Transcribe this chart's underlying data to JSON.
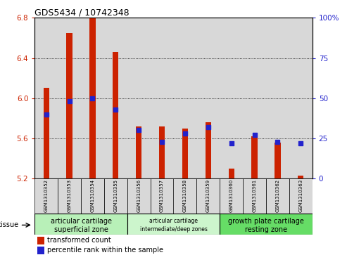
{
  "title": "GDS5434 / 10742348",
  "samples": [
    "GSM1310352",
    "GSM1310353",
    "GSM1310354",
    "GSM1310355",
    "GSM1310356",
    "GSM1310357",
    "GSM1310358",
    "GSM1310359",
    "GSM1310360",
    "GSM1310361",
    "GSM1310362",
    "GSM1310363"
  ],
  "transformed_count": [
    6.1,
    6.65,
    6.8,
    6.46,
    5.72,
    5.72,
    5.7,
    5.76,
    5.3,
    5.62,
    5.56,
    5.23
  ],
  "percentile_rank": [
    40,
    48,
    50,
    43,
    30,
    23,
    28,
    32,
    22,
    27,
    23,
    22
  ],
  "ylim_left": [
    5.2,
    6.8
  ],
  "ylim_right": [
    0,
    100
  ],
  "yticks_left": [
    5.2,
    5.6,
    6.0,
    6.4,
    6.8
  ],
  "yticks_right": [
    0,
    25,
    50,
    75,
    100
  ],
  "bar_color": "#cc2200",
  "dot_color": "#2222cc",
  "column_bg": "#d8d8d8",
  "tissue_groups": [
    {
      "label1": "articular cartilage",
      "label2": "superficial zone",
      "indices": [
        0,
        1,
        2,
        3
      ],
      "color": "#b8f0b8"
    },
    {
      "label1": "articular cartilage",
      "label2": "intermediate/deep zones",
      "indices": [
        4,
        5,
        6,
        7
      ],
      "color": "#ccf5cc",
      "small": true
    },
    {
      "label1": "growth plate cartilage",
      "label2": "resting zone",
      "indices": [
        8,
        9,
        10,
        11
      ],
      "color": "#66dd66"
    }
  ],
  "tissue_label": "tissue",
  "legend_bar_label": "transformed count",
  "legend_dot_label": "percentile rank within the sample"
}
